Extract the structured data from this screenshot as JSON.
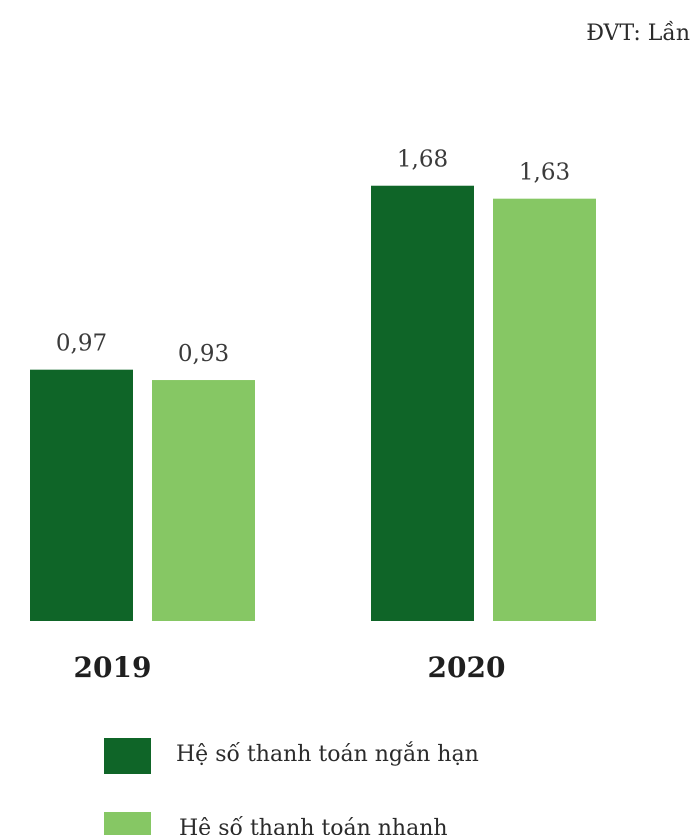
{
  "unit_label": "ĐVT: Lần",
  "colors": {
    "series_1": "#0f6528",
    "series_2": "#86c764"
  },
  "chart_data": {
    "type": "bar",
    "title": "",
    "xlabel": "",
    "ylabel": "",
    "categories": [
      "2019",
      "2020"
    ],
    "series": [
      {
        "name": "Hệ số thanh toán ngắn hạn",
        "values": [
          0.97,
          1.68
        ],
        "value_labels": [
          "0,97",
          "1,68"
        ]
      },
      {
        "name": "Hệ số thanh toán nhanh",
        "values": [
          0.93,
          1.63
        ],
        "value_labels": [
          "0,93",
          "1,63"
        ]
      }
    ],
    "ylim": [
      0,
      1.76
    ],
    "grid": false,
    "legend": "bottom"
  }
}
